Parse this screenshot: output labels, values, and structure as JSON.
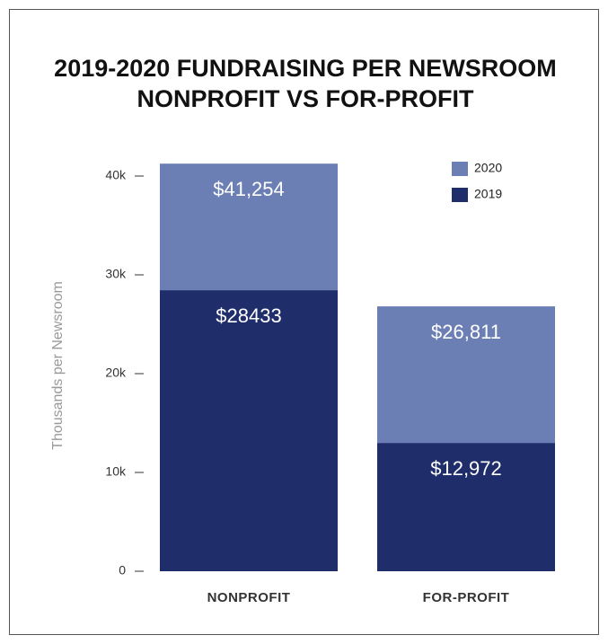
{
  "chart_data": {
    "type": "bar",
    "title": "2019-2020 FUNDRAISING PER NEWSROOM",
    "subtitle": "NONPROFIT VS FOR-PROFIT",
    "y_label": "Thousands per Newsroom",
    "categories": [
      "NONPROFIT",
      "FOR-PROFIT"
    ],
    "series": [
      {
        "name": "2020",
        "color": "#6b7fb5",
        "values": [
          41254,
          26811
        ],
        "value_labels": [
          "$41,254",
          "$26,811"
        ]
      },
      {
        "name": "2019",
        "color": "#1f2d6b",
        "values": [
          28433,
          12972
        ],
        "value_labels": [
          "$28433",
          "$12,972"
        ]
      }
    ],
    "ylim": [
      0,
      42000
    ],
    "yticks": [
      0,
      {
        "value": 10000,
        "label": "10k"
      },
      {
        "value": 20000,
        "label": "20k"
      },
      {
        "value": 30000,
        "label": "30k"
      },
      {
        "value": 40000,
        "label": "40k"
      }
    ],
    "legend": "upper right"
  }
}
